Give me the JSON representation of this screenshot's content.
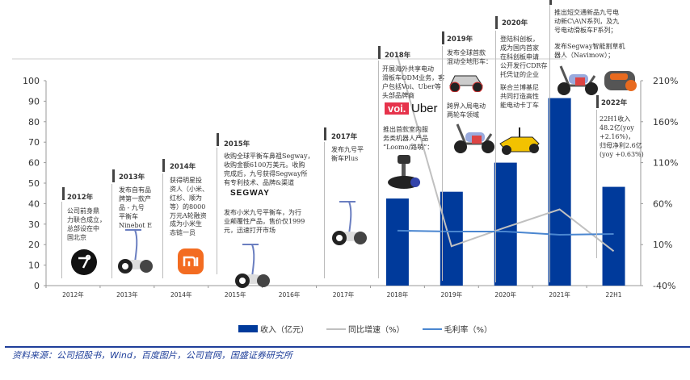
{
  "chart_data": {
    "type": "bar+line",
    "categories": [
      "2012年",
      "2013年",
      "2014年",
      "2015年",
      "2016年",
      "2017年",
      "2018年",
      "2019年",
      "2020年",
      "2021年",
      "22H1"
    ],
    "series": [
      {
        "name": "收入（亿元）",
        "type": "bar",
        "axis": "left",
        "color": "#003a9b",
        "values": [
          null,
          null,
          null,
          null,
          null,
          null,
          42.5,
          45.8,
          60.0,
          91.5,
          48.2
        ]
      },
      {
        "name": "同比增速（%）",
        "type": "line",
        "axis": "right",
        "color": "#c0c0c0",
        "values": [
          null,
          null,
          null,
          null,
          null,
          null,
          240,
          8,
          31,
          53,
          2
        ]
      },
      {
        "name": "毛利率（%）",
        "type": "line",
        "axis": "right",
        "color": "#4a86d0",
        "values": [
          null,
          null,
          null,
          null,
          null,
          null,
          27,
          26,
          26,
          22,
          23
        ]
      }
    ],
    "left_axis": {
      "ylim": [
        0,
        100
      ],
      "ticks": [
        "0",
        "10",
        "20",
        "30",
        "40",
        "50",
        "60",
        "70",
        "80",
        "90",
        "100"
      ]
    },
    "right_axis": {
      "ylim": [
        -40,
        210
      ],
      "ticks": [
        "-40%",
        "10%",
        "60%",
        "110%",
        "160%",
        "210%"
      ]
    },
    "legend": "bottom"
  },
  "timeline": [
    {
      "year": "2012年",
      "text": "公司前身鼎\n力联合成立，\n总部设在中\n国北京"
    },
    {
      "year": "2013年",
      "text": "发布自有品\n牌第一款产\n品 - 九号\n平衡车\nNinebot E"
    },
    {
      "year": "2014年",
      "text": "获得明星投\n资人（小米、\n红杉、顺为\n等）的8000\n万元A轮融资",
      "text2": "成为小米生\n态链一员"
    },
    {
      "year": "2015年",
      "text": "收购全球平衡车鼻祖Segway，\n收购金额6100万美元。收购\n完成后，九号获得Segway所\n有专利技术、品牌&渠道",
      "text2": "发布小米九号平衡车，为行\n业颠覆性产品，售价仅1999\n元，迅速打开市场",
      "logo": "SEGWAY"
    },
    {
      "year": "2017年",
      "text": "发布九号平\n衡车Plus"
    },
    {
      "year": "2018年",
      "text": "开展海外共享电动\n滑板车ODM业务，客\n户包括Voi、Uber等\n头部品牌商",
      "text2": "推出首款室内服\n务类机器人产品\n“Loomo/路萌”：",
      "logo": "voi.",
      "logo2": "Uber"
    },
    {
      "year": "2019年",
      "text": "发布全球首款\n混动全地形车：",
      "text2": "跨界入局电动\n两轮车领域"
    },
    {
      "year": "2020年",
      "text": "登陆科创板，\n成为国内首家\n在科创板申请\n公开发行CDR存\n托凭证的企业",
      "text2": "联合兰博基尼\n共同打造高性\n能电动卡丁车"
    },
    {
      "year": "2021年",
      "text": "推出短交通新品九号电\n动新C\\A\\N系列，及九\n号电动滑板车F系列；",
      "text2": "发布Segway智能割草机\n器人（Navimow）；"
    },
    {
      "year": "2022年",
      "text": "22H1收入\n48.2亿(yoy\n+2.16%)，\n归母净利2.6亿\n(yoy +0.63%)"
    }
  ],
  "source": "资料来源：公司招股书，Wind，百度图片，公司官网，国盛证券研究所"
}
